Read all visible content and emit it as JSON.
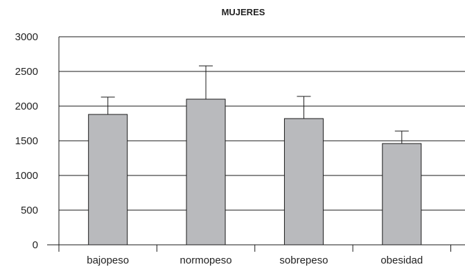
{
  "chart_data": {
    "type": "bar",
    "title": "MUJERES",
    "xlabel": "",
    "ylabel": "",
    "categories": [
      "bajopeso",
      "normopeso",
      "sobrepeso",
      "obesidad"
    ],
    "values": [
      1880,
      2100,
      1820,
      1460
    ],
    "error_upper": [
      2130,
      2580,
      2140,
      1640
    ],
    "ylim": [
      0,
      3000
    ],
    "yticks": [
      0,
      500,
      1000,
      1500,
      2000,
      2500,
      3000
    ],
    "ytick_labels": [
      "0",
      "500",
      "1000",
      "1500",
      "2000",
      "2500",
      "3000"
    ],
    "grid": true,
    "legend": "none",
    "colors": {
      "bar_fill": "#b9babd",
      "bar_stroke": "#1a1a1a",
      "grid": "#1a1a1a",
      "axis": "#1a1a1a"
    }
  }
}
